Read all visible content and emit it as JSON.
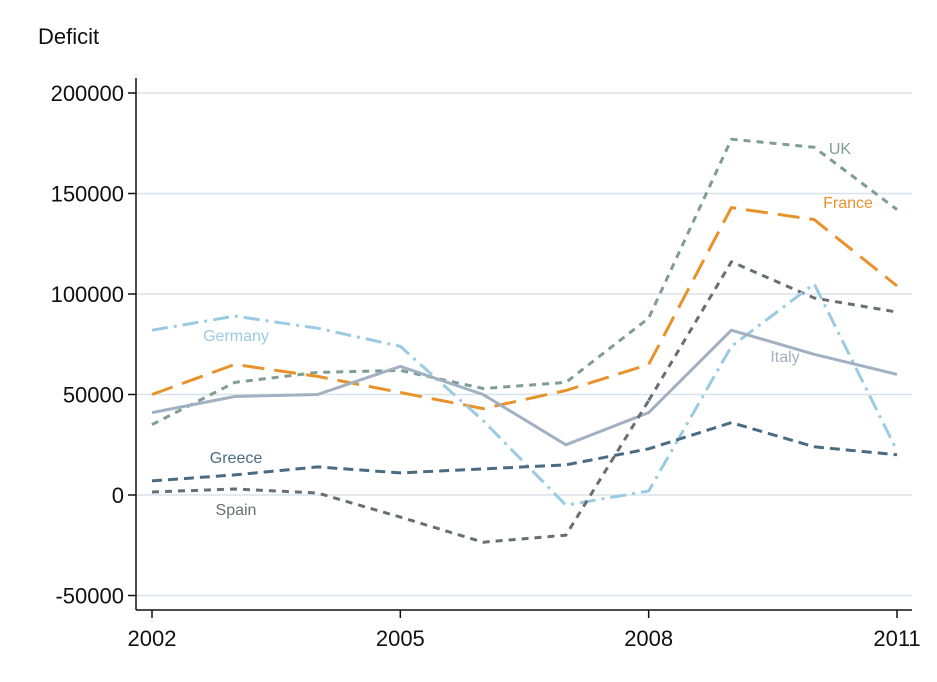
{
  "chart_data": {
    "type": "line",
    "title": "",
    "ylabel": "Deficit",
    "xlabel": "",
    "x": [
      2002,
      2003,
      2004,
      2005,
      2006,
      2007,
      2008,
      2009,
      2010,
      2011
    ],
    "xticks": [
      2002,
      2005,
      2008,
      2011
    ],
    "yticks": [
      -50000,
      0,
      50000,
      100000,
      150000,
      200000
    ],
    "ylim": [
      -55000,
      205000
    ],
    "grid": true,
    "series": [
      {
        "name": "UK",
        "color": "#7f9c95",
        "dash": "short-dash",
        "values": [
          35000,
          56000,
          61000,
          62000,
          53000,
          56000,
          88000,
          177000,
          173000,
          142000
        ]
      },
      {
        "name": "France",
        "color": "#e8922c",
        "dash": "long-dash",
        "values": [
          50000,
          65000,
          59000,
          51000,
          43000,
          52000,
          65000,
          143000,
          137000,
          104000
        ]
      },
      {
        "name": "",
        "color": "#6b6e70",
        "dash": "short-dash",
        "values": [
          null,
          null,
          null,
          null,
          null,
          null,
          47000,
          116000,
          98000,
          91000
        ]
      },
      {
        "name": "Germany",
        "color": "#9acbe3",
        "dash": "dash-dot",
        "values": [
          82000,
          89000,
          83000,
          74000,
          37000,
          -5000,
          2000,
          74000,
          105000,
          22000
        ]
      },
      {
        "name": "Italy",
        "color": "#a1b1c2",
        "dash": "solid",
        "values": [
          41000,
          49000,
          50000,
          64000,
          50000,
          25000,
          41000,
          82000,
          70000,
          60000
        ]
      },
      {
        "name": "Greece",
        "color": "#4b6b80",
        "dash": "dash",
        "values": [
          7000,
          10000,
          14000,
          11000,
          13000,
          15000,
          23000,
          36000,
          24000,
          20000
        ]
      },
      {
        "name": "Spain",
        "color": "#6b6e70",
        "dash": "short-dash",
        "values": [
          1500,
          3000,
          1000,
          -11000,
          -23500,
          -20000,
          47000,
          null,
          null,
          null
        ]
      }
    ],
    "annotations": [
      "UK",
      "France",
      "Germany",
      "Italy",
      "Greece",
      "Spain"
    ]
  }
}
